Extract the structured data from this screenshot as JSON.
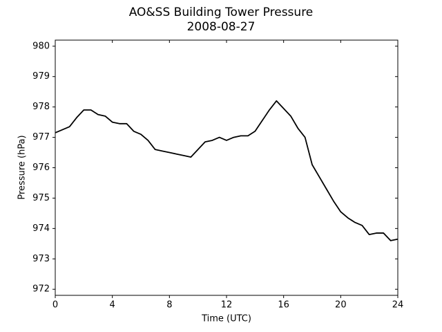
{
  "chart_data": {
    "type": "line",
    "title": "AO&SS Building Tower Pressure",
    "subtitle": "2008-08-27",
    "x_label": "Time (UTC)",
    "y_label": "Pressure (hPa)",
    "x": [
      0,
      0.5,
      1,
      1.5,
      2,
      2.5,
      3,
      3.5,
      4,
      4.5,
      5,
      5.5,
      6,
      6.5,
      7,
      7.5,
      8,
      8.5,
      9,
      9.5,
      10,
      10.5,
      11,
      11.5,
      12,
      12.5,
      13,
      13.5,
      14,
      14.5,
      15,
      15.5,
      16,
      16.5,
      17,
      17.5,
      18,
      18.5,
      19,
      19.5,
      20,
      20.5,
      21,
      21.5,
      22,
      22.5,
      23,
      23.5,
      24
    ],
    "series": [
      {
        "name": "Pressure",
        "color": "#000000",
        "values": [
          977.15,
          977.25,
          977.35,
          977.65,
          977.9,
          977.9,
          977.75,
          977.7,
          977.5,
          977.45,
          977.45,
          977.2,
          977.1,
          976.9,
          976.6,
          976.55,
          976.5,
          976.45,
          976.4,
          976.35,
          976.6,
          976.85,
          976.9,
          977.0,
          976.9,
          977.0,
          977.05,
          977.05,
          977.2,
          977.55,
          977.9,
          978.2,
          977.95,
          977.7,
          977.3,
          977.0,
          976.1,
          975.7,
          975.3,
          974.9,
          974.55,
          974.35,
          974.2,
          974.1,
          973.8,
          973.85,
          973.85,
          973.6,
          973.65
        ]
      }
    ],
    "xlim": [
      0,
      24
    ],
    "xticks": [
      0,
      4,
      8,
      12,
      16,
      20,
      24
    ],
    "ylim": [
      971.8,
      980.2
    ],
    "yticks": [
      972,
      973,
      974,
      975,
      976,
      977,
      978,
      979,
      980
    ]
  }
}
